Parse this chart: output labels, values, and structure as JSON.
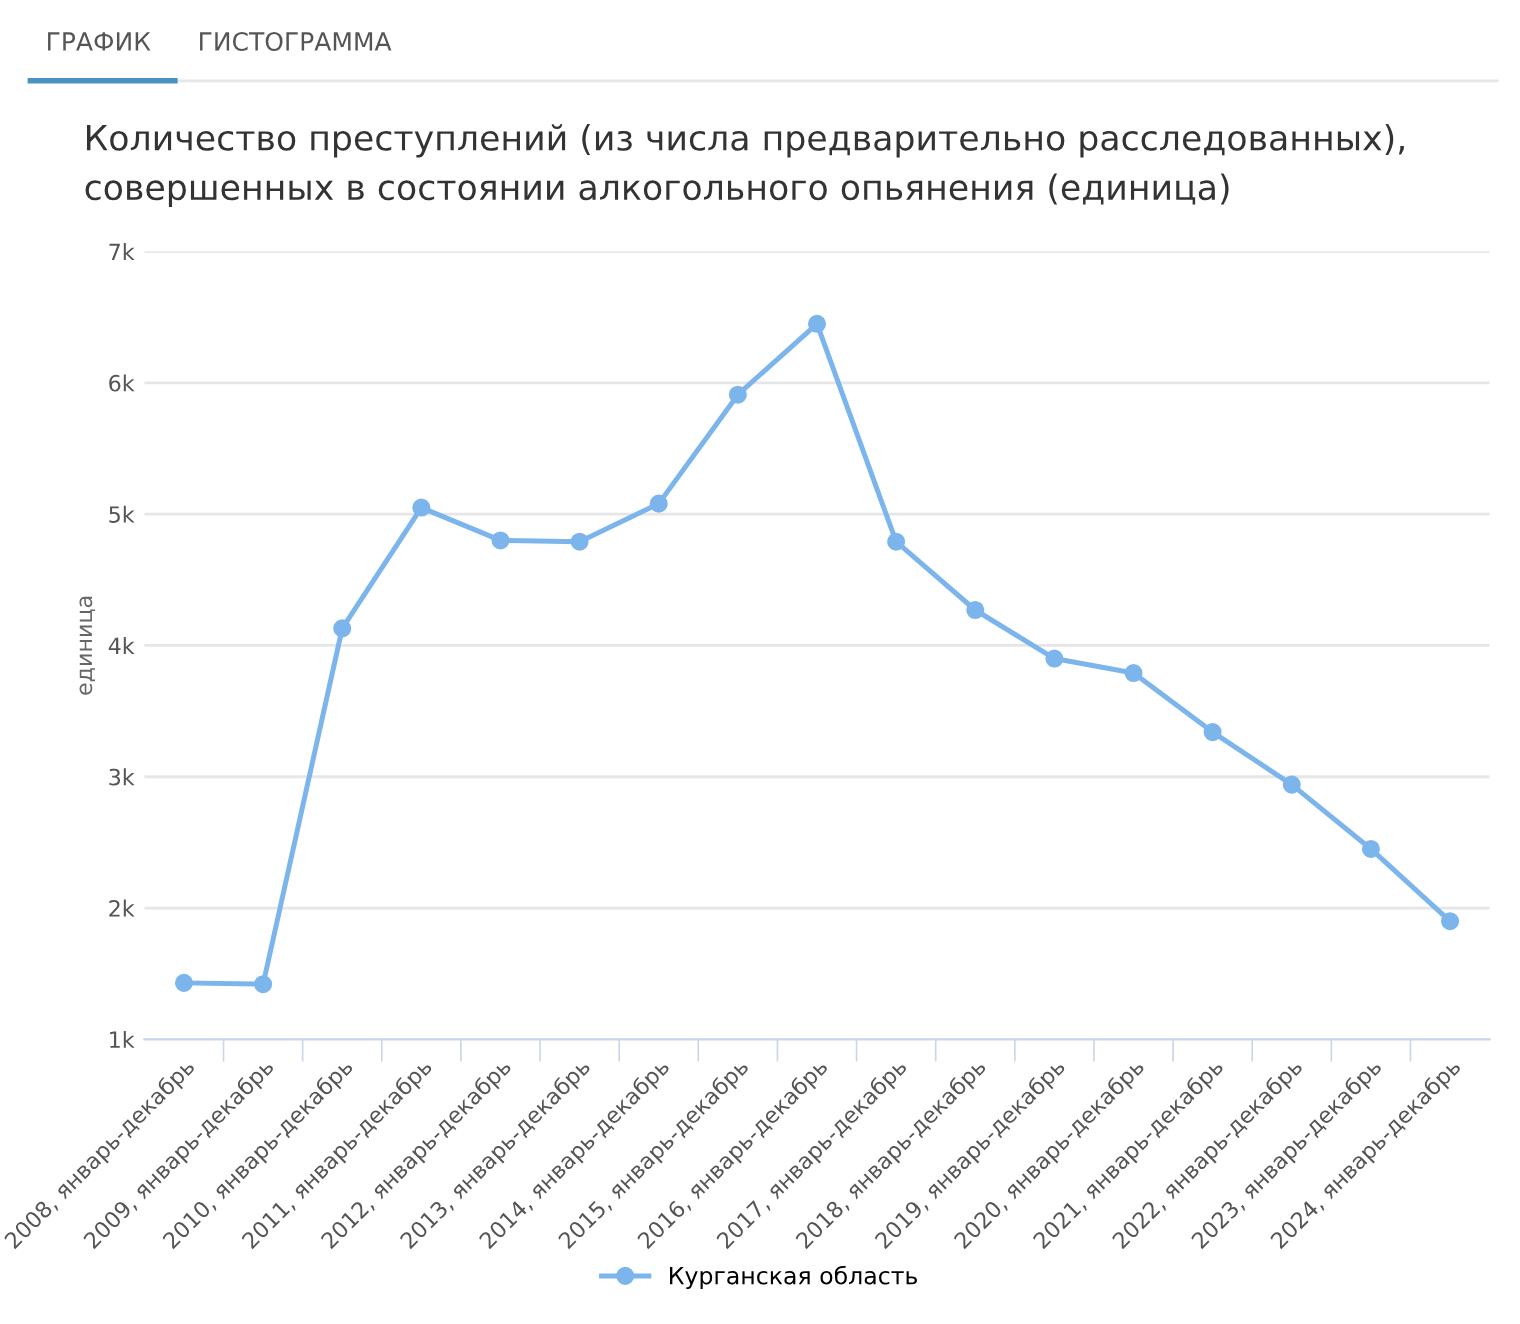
{
  "chart_data": {
    "type": "line",
    "title": "Количество преступлений (из числа предварительно расследованных), совершенных в состоянии алкогольного опьянения (единица)",
    "ylabel": "единица",
    "annotations": [
      "ГРАФИК",
      "ГИСТОГРАММА"
    ],
    "categories": [
      "2008, январь-декабрь",
      "2009, январь-декабрь",
      "2010, январь-декабрь",
      "2011, январь-декабрь",
      "2012, январь-декабрь",
      "2013, январь-декабрь",
      "2014, январь-декабрь",
      "2015, январь-декабрь",
      "2016, январь-декабрь",
      "2017, январь-декабрь",
      "2018, январь-декабрь",
      "2019, январь-декабрь",
      "2020, январь-декабрь",
      "2021, январь-декабрь",
      "2022, январь-декабрь",
      "2023, январь-декабрь",
      "2024, январь-декабрь"
    ],
    "series": [
      {
        "name": "Курганская область",
        "color": "#7cb5ec",
        "values": [
          1430,
          1420,
          4130,
          5050,
          4800,
          4790,
          5080,
          5910,
          6450,
          4790,
          4270,
          3900,
          3790,
          3340,
          2940,
          2450,
          1900
        ]
      }
    ],
    "ylim": [
      1000,
      7000
    ],
    "yticks": [
      {
        "value": 1000,
        "label": "1k"
      },
      {
        "value": 2000,
        "label": "2k"
      },
      {
        "value": 3000,
        "label": "3k"
      },
      {
        "value": 4000,
        "label": "4k"
      },
      {
        "value": 5000,
        "label": "5k"
      },
      {
        "value": 6000,
        "label": "6k"
      },
      {
        "value": 7000,
        "label": "7k"
      }
    ],
    "grid": "y",
    "legend": "bottom",
    "marker": "circle",
    "line_style": "solid"
  }
}
